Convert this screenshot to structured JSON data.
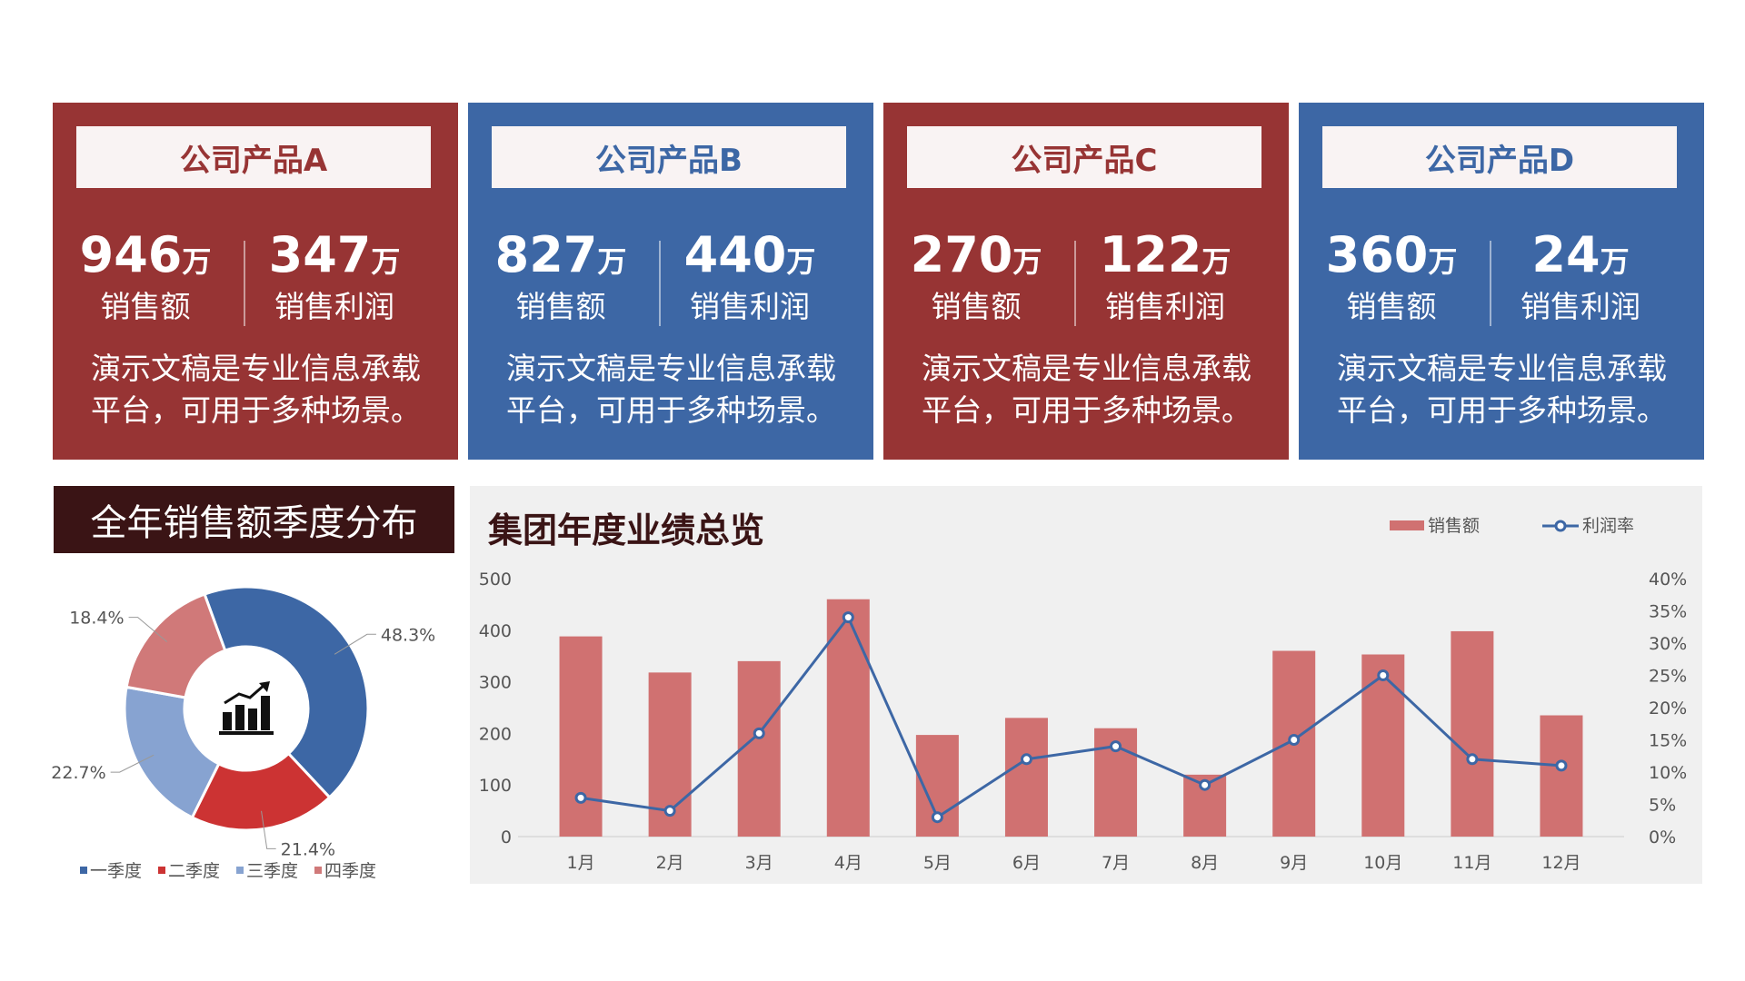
{
  "cards": [
    {
      "title": "公司产品A",
      "sales": "946",
      "profit": "347",
      "unit": "万",
      "sales_label": "销售额",
      "profit_label": "销售利润",
      "desc1": "演示文稿是专业信息承载",
      "desc2": "平台，可用于多种场景。",
      "color": "#973434"
    },
    {
      "title": "公司产品B",
      "sales": "827",
      "profit": "440",
      "unit": "万",
      "sales_label": "销售额",
      "profit_label": "销售利润",
      "desc1": "演示文稿是专业信息承载",
      "desc2": "平台，可用于多种场景。",
      "color": "#3d67a5"
    },
    {
      "title": "公司产品C",
      "sales": "270",
      "profit": "122",
      "unit": "万",
      "sales_label": "销售额",
      "profit_label": "销售利润",
      "desc1": "演示文稿是专业信息承载",
      "desc2": "平台，可用于多种场景。",
      "color": "#973434"
    },
    {
      "title": "公司产品D",
      "sales": "360",
      "profit": "24",
      "unit": "万",
      "sales_label": "销售额",
      "profit_label": "销售利润",
      "desc1": "演示文稿是专业信息承载",
      "desc2": "平台，可用于多种场景。",
      "color": "#3d67a5"
    }
  ],
  "pie": {
    "title": "全年销售额季度分布",
    "center_icon": "chart-growth-icon"
  },
  "combo": {
    "title": "集团年度业绩总览"
  },
  "chart_data": [
    {
      "type": "pie",
      "subtype": "donut",
      "categories": [
        "一季度",
        "二季度",
        "三季度",
        "四季度"
      ],
      "values": [
        48.3,
        21.4,
        22.7,
        18.4
      ],
      "labels": [
        "48.3%",
        "21.4%",
        "22.7%",
        "18.4%"
      ],
      "colors": [
        "#3d67a5",
        "#cc3333",
        "#87a3d1",
        "#d07979"
      ],
      "legend": "bottom"
    },
    {
      "type": "bar",
      "subtype": "bar-line-combo",
      "categories": [
        "1月",
        "2月",
        "3月",
        "4月",
        "5月",
        "6月",
        "7月",
        "8月",
        "9月",
        "10月",
        "11月",
        "12月"
      ],
      "series": [
        {
          "name": "销售额",
          "type": "bar",
          "axis": "left",
          "color": "#d07171",
          "values": [
            388,
            318,
            340,
            460,
            197,
            230,
            210,
            120,
            360,
            353,
            398,
            235
          ]
        },
        {
          "name": "利润率",
          "type": "line",
          "axis": "right",
          "color": "#3d67a5",
          "values": [
            0.06,
            0.04,
            0.16,
            0.34,
            0.03,
            0.12,
            0.14,
            0.08,
            0.15,
            0.25,
            0.12,
            0.11
          ]
        }
      ],
      "ylim": [
        0,
        500
      ],
      "yticks": [
        "0",
        "100",
        "200",
        "300",
        "400",
        "500"
      ],
      "y2lim": [
        0,
        0.4
      ],
      "y2ticks": [
        "0%",
        "5%",
        "10%",
        "15%",
        "20%",
        "25%",
        "30%",
        "35%",
        "40%"
      ],
      "legend": "top-right",
      "grid": false
    }
  ]
}
